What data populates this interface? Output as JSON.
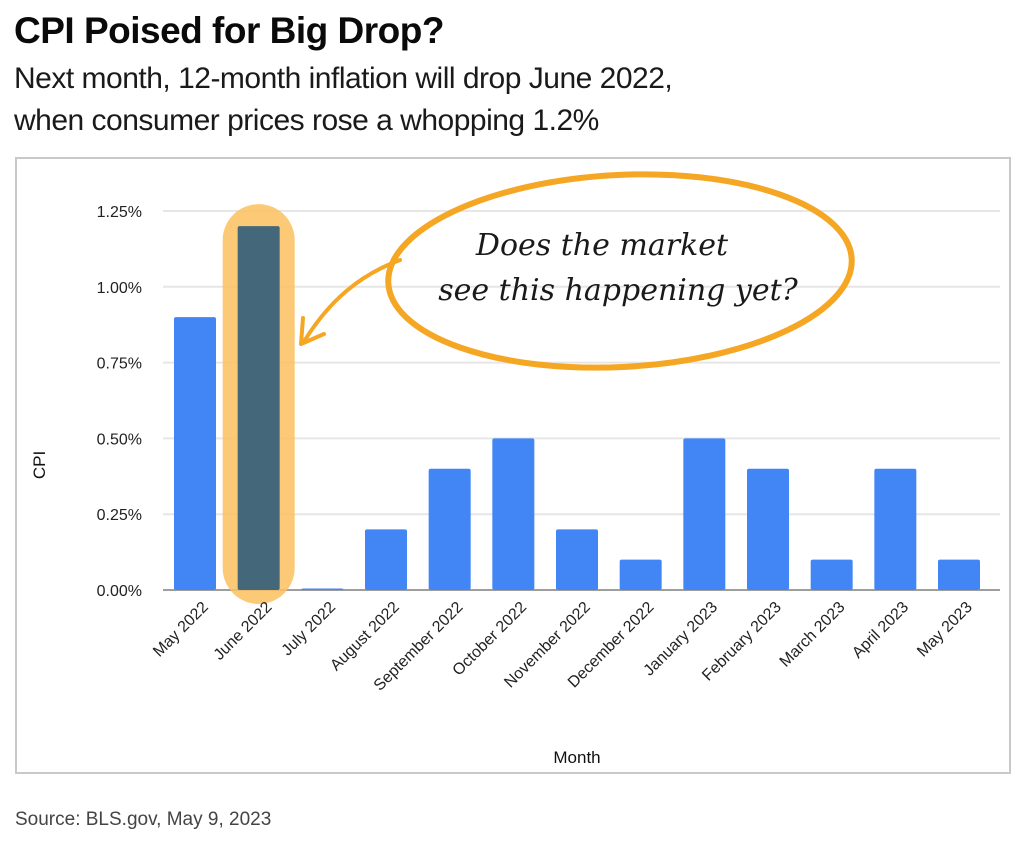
{
  "header": {
    "title": "CPI Poised for Big Drop?",
    "subtitle_line1": "Next month, 12-month inflation will drop June 2022,",
    "subtitle_line2": "when consumer prices rose a whopping 1.2%"
  },
  "footer": {
    "source": "Source: BLS.gov, May 9, 2023"
  },
  "colors": {
    "bar": "#4285f4",
    "highlight_bar": "#44677a",
    "highlight_glow": "#fbbf5e",
    "annotation": "#f5a623",
    "grid": "#e6e6e6",
    "baseline": "#9e9e9e"
  },
  "chart_data": {
    "type": "bar",
    "title": "",
    "xlabel": "Month",
    "ylabel": "CPI",
    "ylim": [
      0,
      1.25
    ],
    "yticks": [
      0,
      0.25,
      0.5,
      0.75,
      1.0,
      1.25
    ],
    "ytick_labels": [
      "0.00%",
      "0.25%",
      "0.50%",
      "0.75%",
      "1.00%",
      "1.25%"
    ],
    "grid": true,
    "legend": "none",
    "categories": [
      "May 2022",
      "June 2022",
      "July 2022",
      "August 2022",
      "September 2022",
      "October 2022",
      "November 2022",
      "December 2022",
      "January 2023",
      "February 2023",
      "March 2023",
      "April 2023",
      "May 2023"
    ],
    "values": [
      0.9,
      1.2,
      0.0,
      0.2,
      0.4,
      0.5,
      0.2,
      0.1,
      0.5,
      0.4,
      0.1,
      0.4,
      0.1
    ],
    "highlighted_category": "June 2022",
    "annotations": [
      {
        "text_line1": "Does the market",
        "text_line2": "see this happening yet?",
        "target": "June 2022"
      }
    ]
  }
}
